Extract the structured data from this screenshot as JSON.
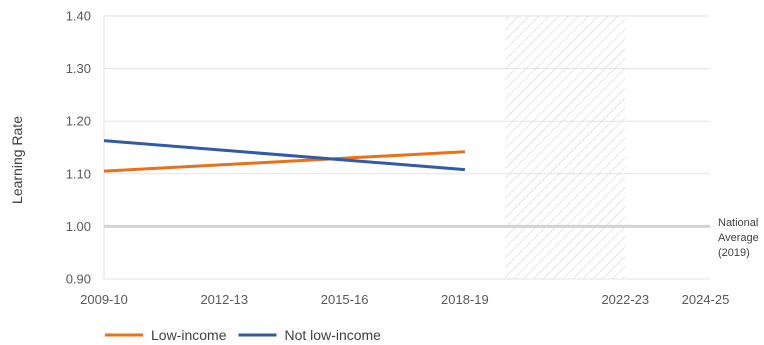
{
  "chart_data": {
    "type": "line",
    "title": "",
    "xlabel": "",
    "ylabel": "Learning Rate",
    "ylim": [
      0.9,
      1.4
    ],
    "y_ticks": [
      "0.90",
      "1.00",
      "1.10",
      "1.20",
      "1.30",
      "1.40"
    ],
    "x_ticks": [
      "2009-10",
      "2012-13",
      "2015-16",
      "2018-19",
      "2022-23",
      "2024-25"
    ],
    "series": [
      {
        "name": "Low-income",
        "color": "#E8711A",
        "points": [
          {
            "x": "2009-10",
            "y": 1.105
          },
          {
            "x": "2018-19",
            "y": 1.142
          }
        ]
      },
      {
        "name": "Not low-income",
        "color": "#2F5BA8",
        "points": [
          {
            "x": "2009-10",
            "y": 1.163
          },
          {
            "x": "2018-19",
            "y": 1.108
          }
        ]
      }
    ],
    "reference_line": {
      "y": 1.0,
      "label_lines": [
        "National",
        "Average",
        "(2019)"
      ],
      "color": "#D3D3D3"
    },
    "shaded_region": {
      "from": "2019-20",
      "to": "2021-22",
      "pattern": "diagonal-hatch"
    },
    "grid": true,
    "legend_position": "bottom-left"
  }
}
